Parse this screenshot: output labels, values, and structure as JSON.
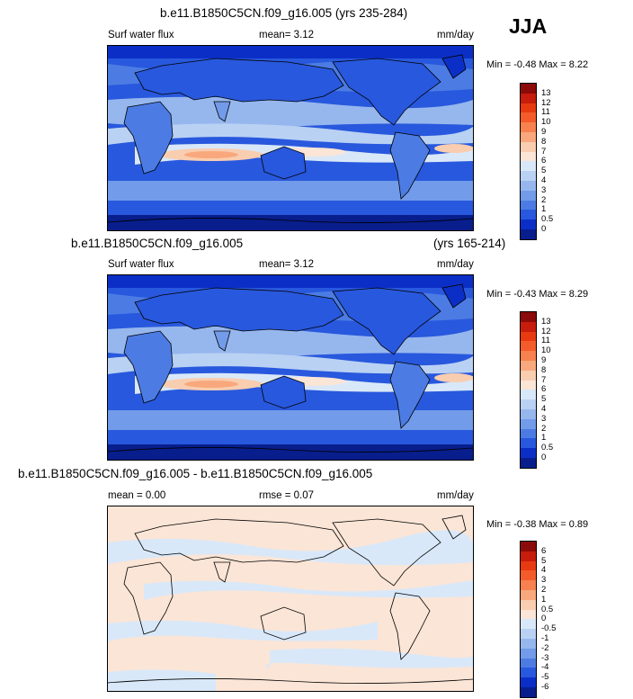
{
  "season": "JJA",
  "panels": [
    {
      "id": "p1",
      "title": "b.e11.B1850C5CN.f09_g16.005 (yrs 235-284)",
      "subtitle_right": "",
      "variable": "Surf water flux",
      "stat": "mean=  3.12",
      "units": "mm/day",
      "minmax": "Min =  -0.48 Max =  8.22"
    },
    {
      "id": "p2",
      "title": "b.e11.B1850C5CN.f09_g16.005",
      "subtitle_right": "(yrs 165-214)",
      "variable": "Surf water flux",
      "stat": "mean=  3.12",
      "units": "mm/day",
      "minmax": "Min =  -0.43 Max =  8.29"
    },
    {
      "id": "p3",
      "title": "b.e11.B1850C5CN.f09_g16.005 - b.e11.B1850C5CN.f09_g16.005",
      "subtitle_right": "",
      "variable": "mean =  0.00",
      "stat": "rmse =  0.07",
      "units": "mm/day",
      "minmax": "Min =  -0.38 Max =  0.89"
    }
  ],
  "chart_data": [
    {
      "type": "heatmap",
      "title": "b.e11.B1850C5CN.f09_g16.005 (yrs 235-284)",
      "variable": "Surf water flux",
      "units": "mm/day",
      "mean": 3.12,
      "min": -0.48,
      "max": 8.22,
      "colorbar_levels": [
        "13",
        "12",
        "11",
        "10",
        "9",
        "8",
        "7",
        "6",
        "5",
        "4",
        "3",
        "2",
        "1",
        "0.5",
        "0"
      ],
      "colorbar_colors": [
        "#8b0a0a",
        "#c61d0c",
        "#e83a10",
        "#f35c2a",
        "#f7814f",
        "#f8a87c",
        "#f9cdb0",
        "#fbe5d6",
        "#d9e8f9",
        "#b9d1f3",
        "#96b7ee",
        "#729be9",
        "#4c7ce3",
        "#2858dd",
        "#0b2fc6",
        "#081e8c"
      ]
    },
    {
      "type": "heatmap",
      "title": "b.e11.B1850C5CN.f09_g16.005 (yrs 165-214)",
      "variable": "Surf water flux",
      "units": "mm/day",
      "mean": 3.12,
      "min": -0.43,
      "max": 8.29,
      "colorbar_levels": [
        "13",
        "12",
        "11",
        "10",
        "9",
        "8",
        "7",
        "6",
        "5",
        "4",
        "3",
        "2",
        "1",
        "0.5",
        "0"
      ],
      "colorbar_colors": [
        "#8b0a0a",
        "#c61d0c",
        "#e83a10",
        "#f35c2a",
        "#f7814f",
        "#f8a87c",
        "#f9cdb0",
        "#fbe5d6",
        "#d9e8f9",
        "#b9d1f3",
        "#96b7ee",
        "#729be9",
        "#4c7ce3",
        "#2858dd",
        "#0b2fc6",
        "#081e8c"
      ]
    },
    {
      "type": "heatmap",
      "title": "b.e11.B1850C5CN.f09_g16.005 - b.e11.B1850C5CN.f09_g16.005",
      "units": "mm/day",
      "mean": 0.0,
      "rmse": 0.07,
      "min": -0.38,
      "max": 0.89,
      "colorbar_levels": [
        "6",
        "5",
        "4",
        "3",
        "2",
        "1",
        "0.5",
        "0",
        "-0.5",
        "-1",
        "-2",
        "-3",
        "-4",
        "-5",
        "-6"
      ],
      "colorbar_colors": [
        "#8b0a0a",
        "#c61d0c",
        "#e83a10",
        "#f35c2a",
        "#f7814f",
        "#f8a87c",
        "#f9cdb0",
        "#fbe5d6",
        "#d9e8f9",
        "#b9d1f3",
        "#96b7ee",
        "#729be9",
        "#4c7ce3",
        "#2858dd",
        "#0b2fc6",
        "#081e8c"
      ]
    }
  ]
}
